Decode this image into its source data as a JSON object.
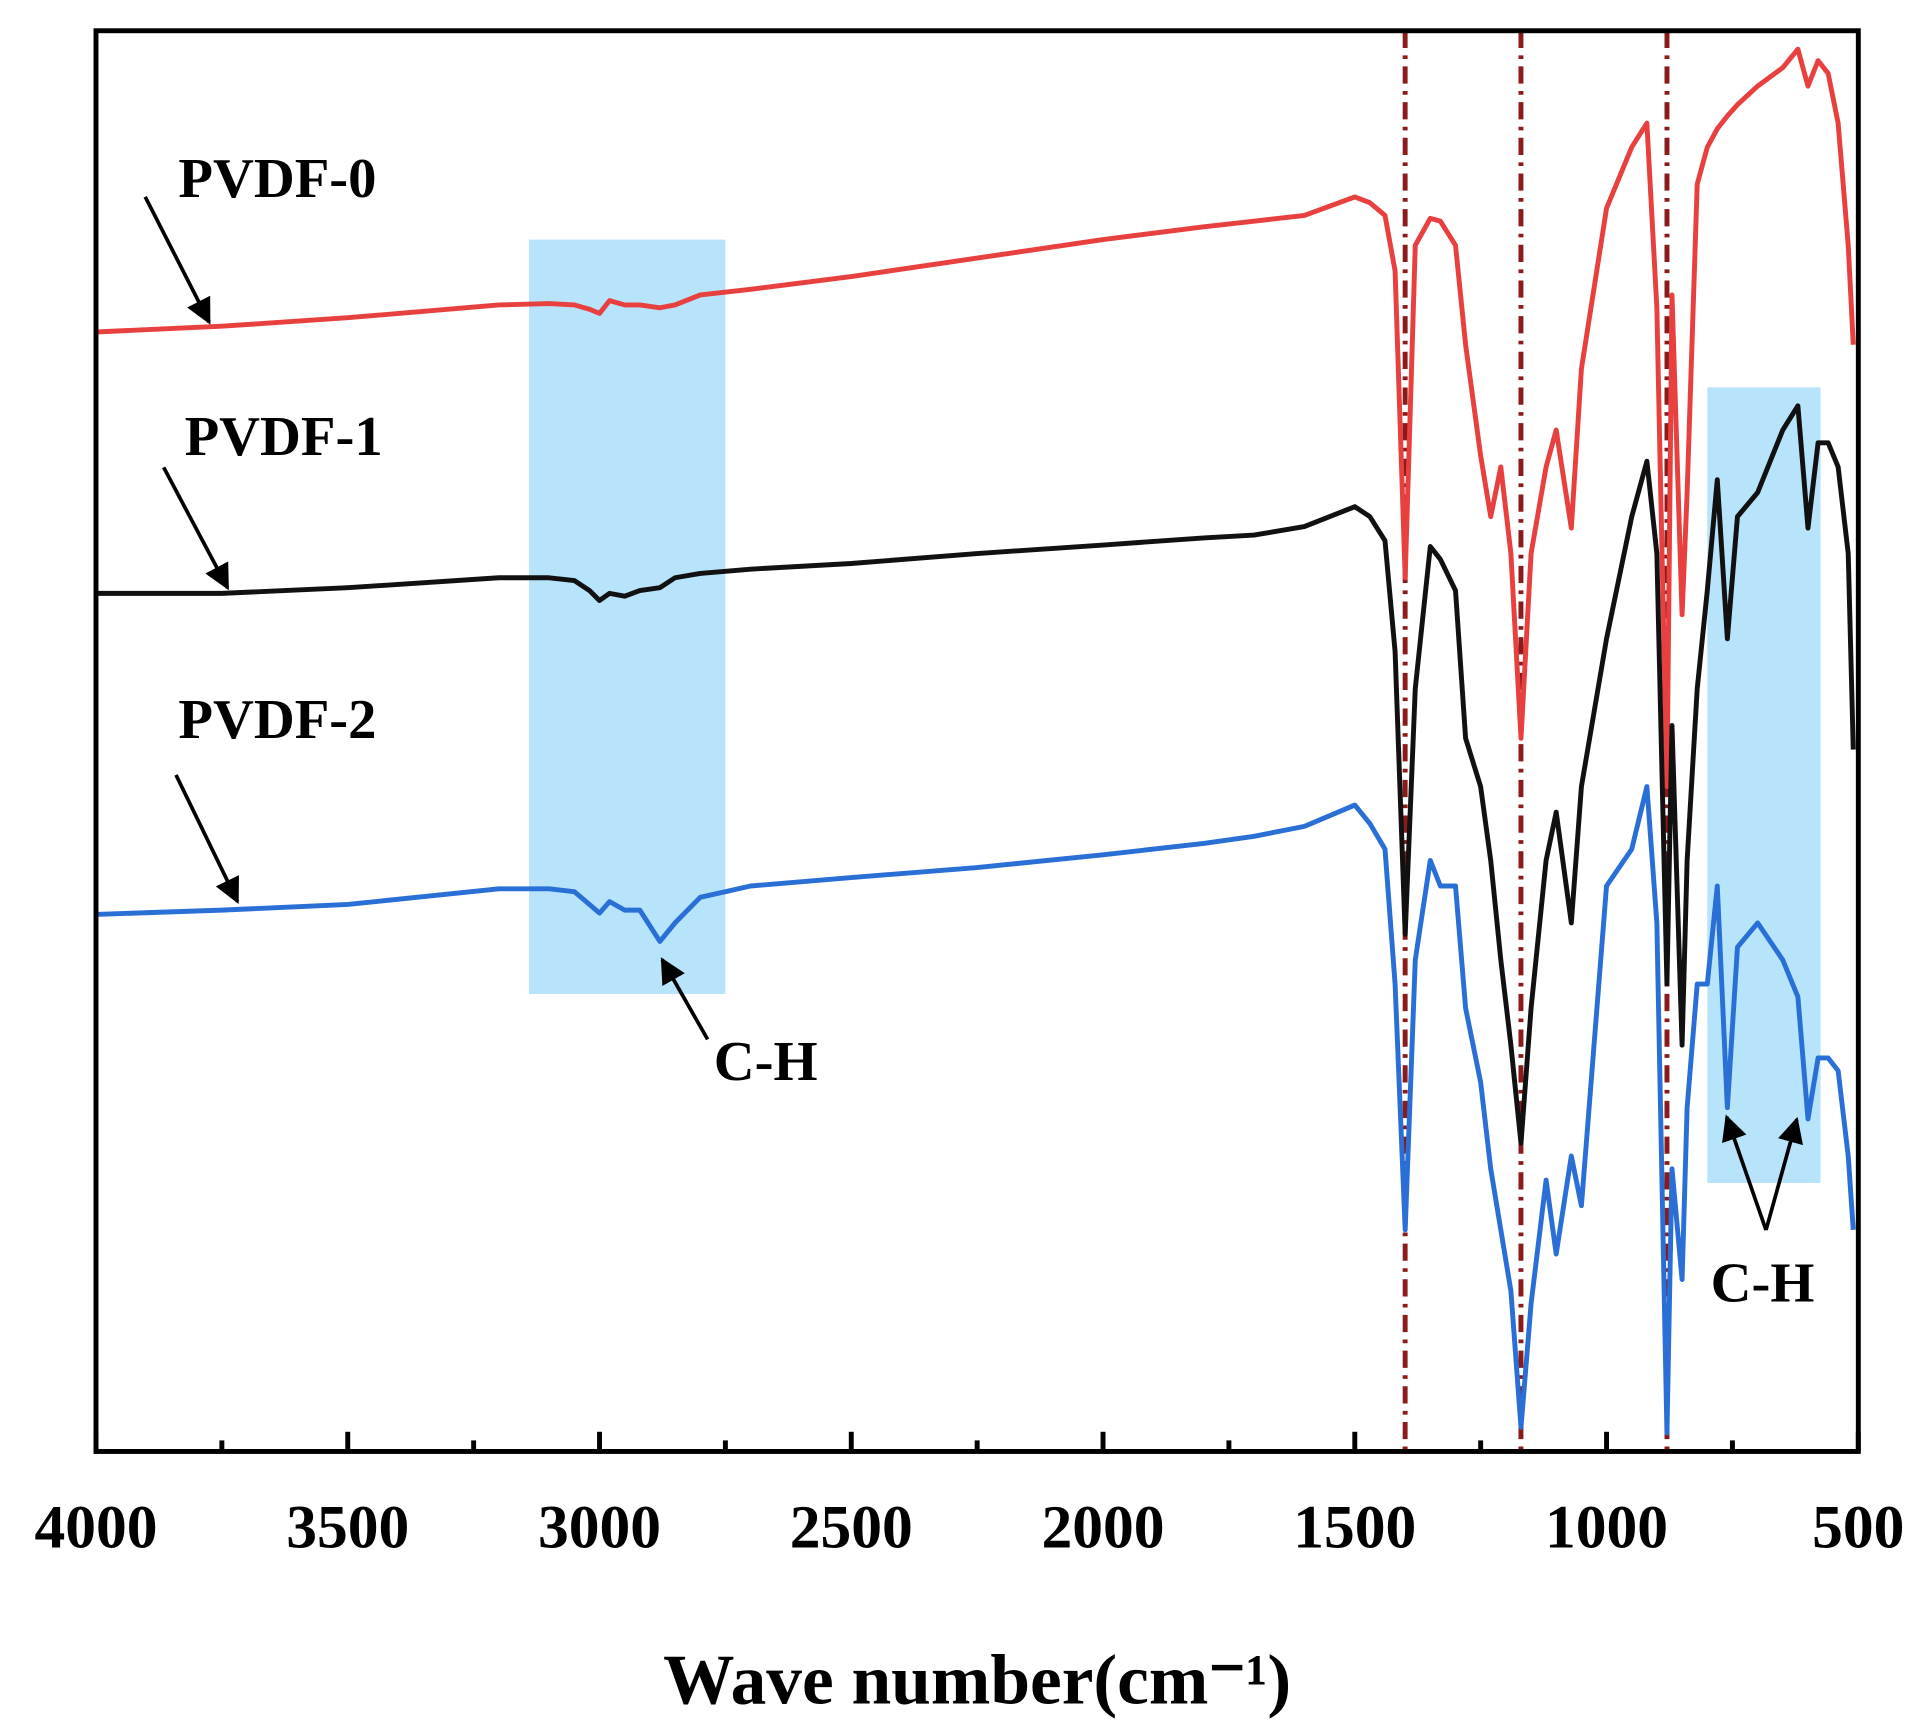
{
  "chart_data": {
    "type": "line",
    "xlabel": "Wave number(cm⁻¹)",
    "xlim": [
      4000,
      500
    ],
    "ylim": [
      0,
      100
    ],
    "xticks": [
      4000,
      3500,
      3000,
      2500,
      2000,
      1500,
      1000,
      500
    ],
    "x": [
      4000,
      3750,
      3500,
      3200,
      3100,
      3050,
      3020,
      3000,
      2980,
      2950,
      2920,
      2880,
      2850,
      2800,
      2700,
      2500,
      2250,
      2000,
      1800,
      1700,
      1600,
      1500,
      1470,
      1440,
      1420,
      1400,
      1380,
      1350,
      1330,
      1300,
      1280,
      1250,
      1230,
      1210,
      1190,
      1170,
      1150,
      1120,
      1100,
      1070,
      1050,
      1000,
      950,
      920,
      900,
      880,
      870,
      850,
      840,
      820,
      800,
      780,
      760,
      740,
      700,
      650,
      620,
      600,
      580,
      560,
      540,
      520,
      510
    ],
    "series": [
      {
        "name": "PVDF-0",
        "color": "#e8403f",
        "values": [
          78.8,
          79.2,
          79.8,
          80.7,
          80.8,
          80.7,
          80.4,
          80.1,
          81.0,
          80.7,
          80.7,
          80.5,
          80.7,
          81.4,
          81.8,
          82.7,
          84.0,
          85.3,
          86.2,
          86.6,
          87.0,
          88.3,
          87.9,
          87.0,
          83.1,
          61.5,
          84.9,
          86.8,
          86.6,
          84.9,
          77.9,
          70.1,
          65.8,
          69.3,
          63.2,
          50.2,
          63.2,
          69.3,
          71.9,
          65.0,
          76.2,
          87.5,
          91.8,
          93.5,
          80.5,
          46.8,
          81.4,
          58.9,
          67.5,
          89.2,
          91.8,
          93.1,
          94.0,
          94.8,
          96.1,
          97.4,
          98.7,
          96.1,
          97.9,
          97.0,
          93.5,
          84.9,
          77.9
        ]
      },
      {
        "name": "PVDF-1",
        "color": "#111111",
        "values": [
          60.4,
          60.4,
          60.8,
          61.5,
          61.5,
          61.3,
          60.6,
          59.9,
          60.4,
          60.2,
          60.6,
          60.8,
          61.5,
          61.8,
          62.1,
          62.5,
          63.2,
          63.8,
          64.3,
          64.5,
          65.1,
          66.5,
          65.8,
          64.1,
          56.3,
          36.4,
          53.7,
          63.7,
          62.8,
          60.6,
          50.2,
          46.8,
          41.6,
          34.6,
          28.6,
          21.7,
          31.2,
          41.6,
          45.0,
          37.2,
          46.8,
          57.2,
          65.8,
          69.7,
          63.2,
          32.9,
          51.1,
          28.6,
          41.6,
          53.7,
          60.6,
          68.4,
          57.2,
          65.8,
          67.5,
          71.9,
          73.6,
          65.0,
          71.0,
          71.0,
          69.3,
          63.2,
          49.4
        ]
      },
      {
        "name": "PVDF-2",
        "color": "#2a6fd6",
        "values": [
          37.8,
          38.1,
          38.5,
          39.6,
          39.6,
          39.4,
          38.5,
          37.9,
          38.7,
          38.1,
          38.1,
          35.9,
          37.2,
          39.0,
          39.8,
          40.4,
          41.1,
          42.0,
          42.8,
          43.3,
          44.0,
          45.5,
          44.2,
          42.4,
          32.9,
          15.6,
          34.6,
          41.6,
          39.8,
          39.8,
          31.2,
          26.0,
          19.9,
          15.6,
          11.3,
          1.7,
          10.4,
          19.1,
          13.9,
          20.8,
          17.3,
          39.8,
          42.4,
          46.8,
          37.2,
          1.3,
          19.9,
          12.1,
          24.2,
          32.9,
          32.9,
          39.8,
          24.2,
          35.5,
          37.2,
          34.6,
          32.0,
          23.4,
          27.7,
          27.7,
          26.8,
          20.8,
          15.6
        ]
      }
    ],
    "highlights": [
      {
        "xlim": [
          3140,
          2750
        ],
        "ylim": [
          32.2,
          85.3
        ],
        "color": "#b8e4fb"
      },
      {
        "xlim": [
          800,
          575
        ],
        "ylim": [
          18.9,
          74.9
        ],
        "color": "#b8e4fb"
      }
    ],
    "vlines": [
      1400,
      1170,
      880
    ],
    "vline_color": "#8b1a1a",
    "annotations": [
      "C-H",
      "C-H"
    ]
  }
}
